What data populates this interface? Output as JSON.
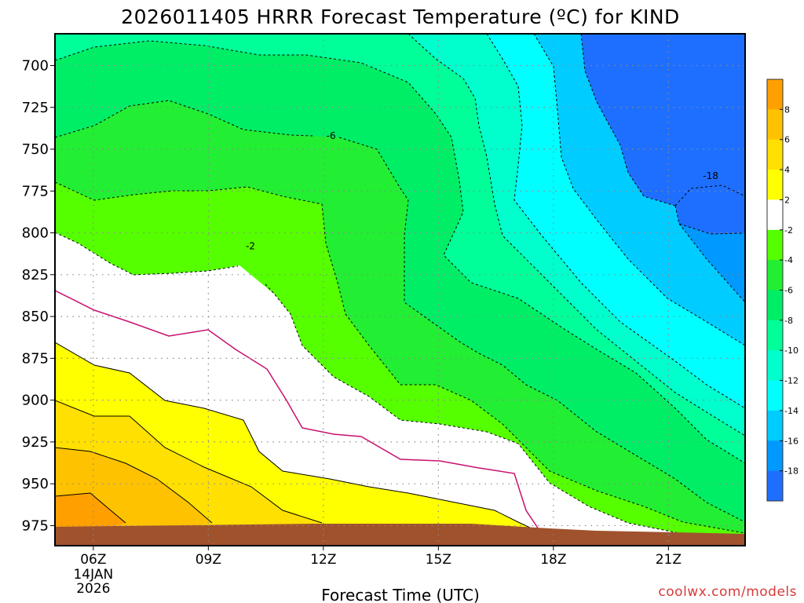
{
  "chart_data": {
    "type": "heatmap",
    "title": "2026011405 HRRR Forecast Temperature (ºC) for KIND",
    "xlabel": "Forecast Time (UTC)",
    "x_ticks": [
      {
        "label": "06Z",
        "hour": 6,
        "sub": [
          "14JAN",
          "2026"
        ]
      },
      {
        "label": "09Z",
        "hour": 9
      },
      {
        "label": "12Z",
        "hour": 12
      },
      {
        "label": "15Z",
        "hour": 15
      },
      {
        "label": "18Z",
        "hour": 18
      },
      {
        "label": "21Z",
        "hour": 21
      }
    ],
    "xlim": [
      5,
      23
    ],
    "y_ticks": [
      "700",
      "725",
      "750",
      "775",
      "800",
      "825",
      "850",
      "875",
      "900",
      "925",
      "950",
      "975"
    ],
    "y_values": [
      700,
      725,
      750,
      775,
      800,
      825,
      850,
      875,
      900,
      925,
      950,
      975
    ],
    "ylim": [
      681,
      987
    ],
    "colorbar": {
      "levels": [
        8,
        6,
        4,
        2,
        -2,
        -4,
        -6,
        -8,
        -10,
        -12,
        -14,
        -16,
        -18
      ],
      "colors": [
        "#ffa000",
        "#ffc200",
        "#ffe000",
        "#ffff00",
        "#ffffff",
        "#55ff00",
        "#22ee33",
        "#00ee66",
        "#00ff99",
        "#00ffcc",
        "#00ffff",
        "#00ccff",
        "#0099ff",
        "#1e6fff"
      ]
    },
    "contour_labels": [
      {
        "text": "-6",
        "x": 12.2,
        "p": 742
      },
      {
        "text": "-2",
        "x": 10.1,
        "p": 808
      },
      {
        "text": "-18",
        "x": 22.1,
        "p": 766
      }
    ],
    "surface_color": "#a0522d",
    "series": []
  },
  "credit": "coolwx.com/models"
}
